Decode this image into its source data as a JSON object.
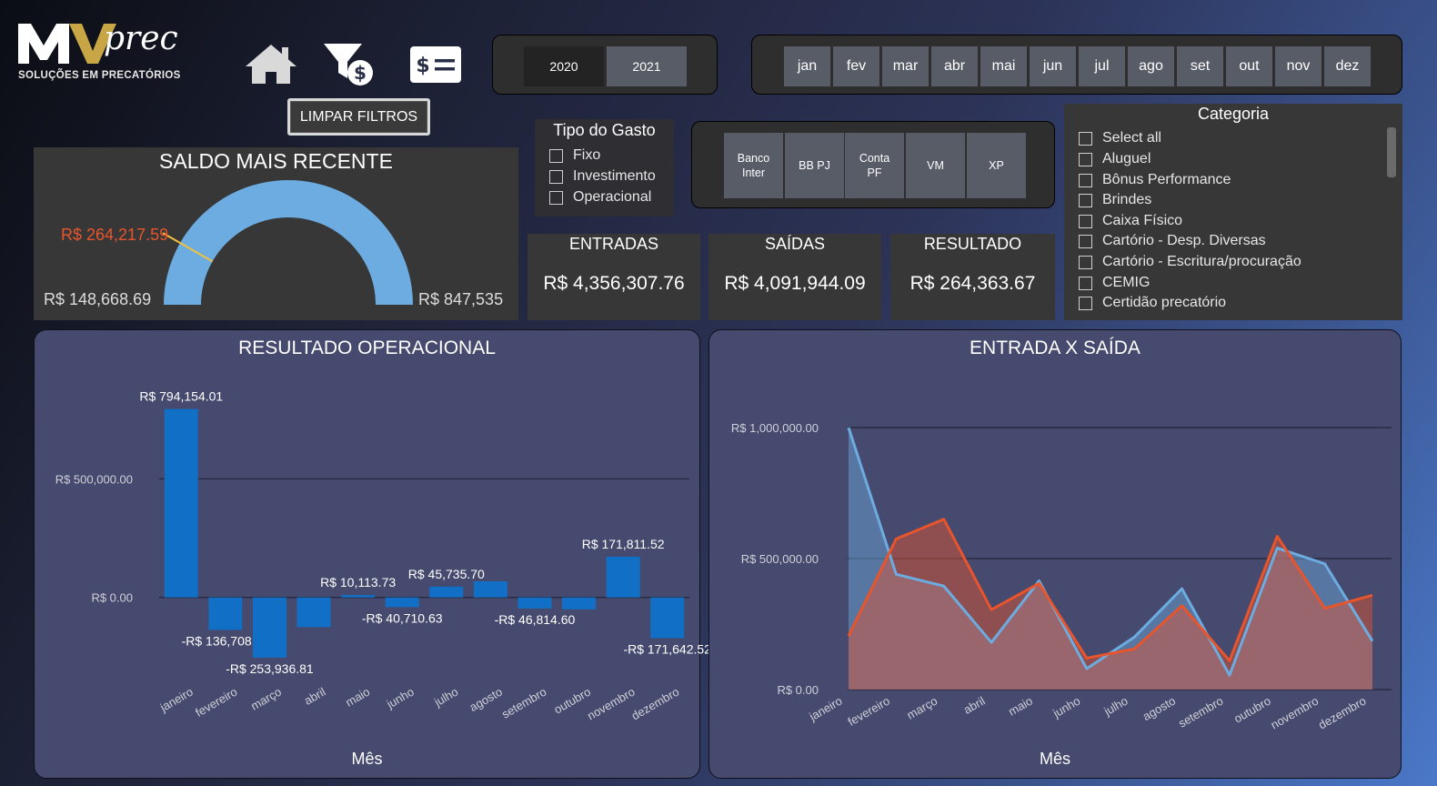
{
  "brand": {
    "logo_text": "MVprec",
    "tagline": "SOLUÇÕES EM PRECATÓRIOS"
  },
  "nav": {
    "home_icon": "home-icon",
    "filter_icon": "filter-money-icon",
    "bill_icon": "bill-icon"
  },
  "clear_filters": "LIMPAR FILTROS",
  "years": [
    "2020",
    "2021"
  ],
  "months": [
    "jan",
    "fev",
    "mar",
    "abr",
    "mai",
    "jun",
    "jul",
    "ago",
    "set",
    "out",
    "nov",
    "dez"
  ],
  "saldo": {
    "title": "SALDO MAIS RECENTE",
    "value": "R$ 264,217.59",
    "min": "R$ 148,668.69",
    "max": "R$ 847,535",
    "value_num": 264217.59,
    "min_num": 148668.69,
    "max_num": 847535,
    "gauge_color": "#6cace0",
    "needle_color": "#f0c040"
  },
  "tipo_gasto": {
    "title": "Tipo do Gasto",
    "options": [
      "Fixo",
      "Investimento",
      "Operacional"
    ]
  },
  "banks": [
    "Banco\nInter",
    "BB PJ",
    "Conta\nPF",
    "VM",
    "XP"
  ],
  "kpis": {
    "entradas": {
      "title": "ENTRADAS",
      "value": "R$ 4,356,307.76"
    },
    "saidas": {
      "title": "SAÍDAS",
      "value": "R$ 4,091,944.09"
    },
    "resultado": {
      "title": "RESULTADO",
      "value": "R$ 264,363.67"
    }
  },
  "categoria": {
    "title": "Categoria",
    "options": [
      "Select all",
      "Aluguel",
      "Bônus Performance",
      "Brindes",
      "Caixa Físico",
      "Cartório - Desp. Diversas",
      "Cartório - Escritura/procuração",
      "CEMIG",
      "Certidão precatório"
    ]
  },
  "chart_data": [
    {
      "type": "bar",
      "title": "RESULTADO OPERACIONAL",
      "xlabel": "Mês",
      "ylabel": "",
      "categories": [
        "janeiro",
        "fevereiro",
        "março",
        "abril",
        "maio",
        "junho",
        "julho",
        "agosto",
        "setembro",
        "outubro",
        "novembro",
        "dezembro"
      ],
      "values": [
        794154.01,
        -136708.12,
        -253936.81,
        -125000,
        10113.73,
        -40710.63,
        45735.7,
        68000,
        -46814.6,
        -50000,
        171811.52,
        -171642.52
      ],
      "data_labels": [
        "R$ 794,154.01",
        "-R$ 136,708.12",
        "-R$ 253,936.81",
        "",
        "R$ 10,113.73",
        "-R$ 40,710.63",
        "R$ 45,735.70",
        "",
        "-R$ 46,814.60",
        "",
        "R$ 171,811.52",
        "-R$ 171,642.52"
      ],
      "yticks": [
        0,
        500000
      ],
      "ytick_labels": [
        "R$ 0.00",
        "R$ 500,000.00"
      ],
      "ylim": [
        -300000,
        850000
      ],
      "grid": true,
      "color": "#1170c5"
    },
    {
      "type": "area",
      "title": "ENTRADA X SAÍDA",
      "xlabel": "Mês",
      "ylabel": "",
      "categories": [
        "janeiro",
        "fevereiro",
        "março",
        "abril",
        "maio",
        "junho",
        "julho",
        "agosto",
        "setembro",
        "outubro",
        "novembro",
        "dezembro"
      ],
      "series": [
        {
          "values": [
            1000000,
            440000,
            395000,
            180000,
            415000,
            80000,
            200000,
            385000,
            55000,
            540000,
            480000,
            185000
          ],
          "color": "#6cace0"
        },
        {
          "values": [
            205000,
            575000,
            650000,
            305000,
            405000,
            120000,
            155000,
            320000,
            110000,
            585000,
            310000,
            360000
          ],
          "color": "#e8552d"
        }
      ],
      "yticks": [
        0,
        500000,
        1000000
      ],
      "ytick_labels": [
        "R$ 0.00",
        "R$ 500,000.00",
        "R$ 1,000,000.00"
      ],
      "ylim": [
        0,
        1000000
      ],
      "grid": true
    }
  ]
}
